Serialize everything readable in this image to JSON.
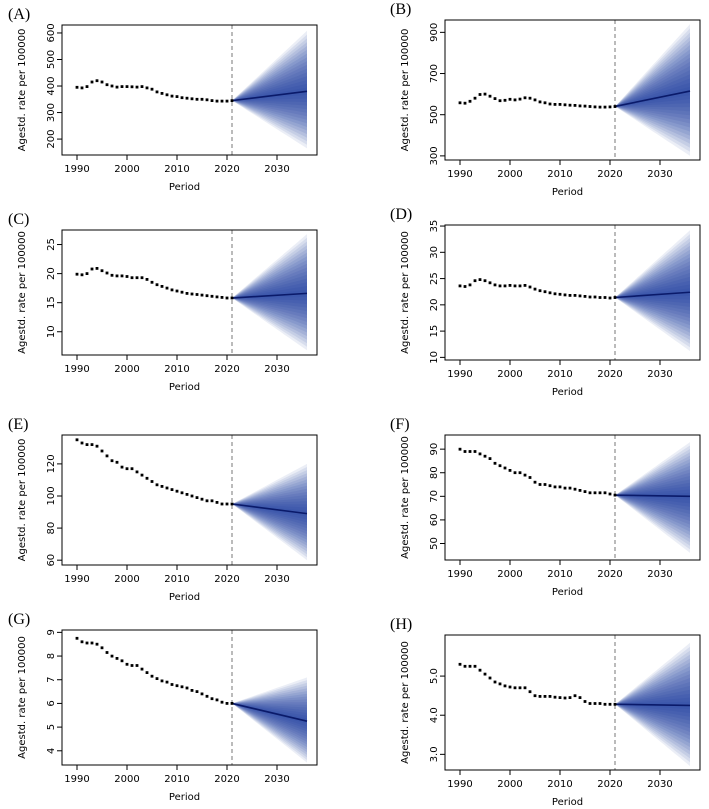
{
  "figure": {
    "colors": {
      "fan": "#1f3fa0",
      "obs": "#000000",
      "frame": "#000000",
      "vline": "#777777"
    }
  },
  "chart_data": [
    {
      "type": "line",
      "panel": "(A)",
      "xlabel": "Period",
      "ylabel": "Agestd. rate per 100000",
      "xlim": [
        1987,
        2038
      ],
      "ylim": [
        140,
        630
      ],
      "xticks": [
        1990,
        2000,
        2010,
        2020,
        2030
      ],
      "yticks": [
        200,
        300,
        400,
        500,
        600
      ],
      "forecast_start": 2021,
      "observed": {
        "x": [
          1990,
          1991,
          1992,
          1993,
          1994,
          1995,
          1996,
          1997,
          1998,
          1999,
          2000,
          2001,
          2002,
          2003,
          2004,
          2005,
          2006,
          2007,
          2008,
          2009,
          2010,
          2011,
          2012,
          2013,
          2014,
          2015,
          2016,
          2017,
          2018,
          2019,
          2020,
          2021
        ],
        "y": [
          395,
          393,
          398,
          415,
          420,
          415,
          405,
          400,
          396,
          398,
          398,
          397,
          396,
          398,
          393,
          388,
          378,
          372,
          367,
          362,
          360,
          356,
          354,
          352,
          350,
          350,
          348,
          345,
          343,
          343,
          343,
          345
        ]
      },
      "forecast": {
        "x": [
          2021,
          2036
        ],
        "median": [
          345,
          380
        ],
        "upper": [
          345,
          608
        ],
        "lower": [
          345,
          165
        ]
      }
    },
    {
      "type": "line",
      "panel": "(B)",
      "xlabel": "Period",
      "ylabel": "Agestd. rate per 100000",
      "xlim": [
        1987,
        2038
      ],
      "ylim": [
        280,
        960
      ],
      "xticks": [
        1990,
        2000,
        2010,
        2020,
        2030
      ],
      "yticks": [
        300,
        500,
        700,
        900
      ],
      "forecast_start": 2021,
      "observed": {
        "x": [
          1990,
          1991,
          1992,
          1993,
          1994,
          1995,
          1996,
          1997,
          1998,
          1999,
          2000,
          2001,
          2002,
          2003,
          2004,
          2005,
          2006,
          2007,
          2008,
          2009,
          2010,
          2011,
          2012,
          2013,
          2014,
          2015,
          2016,
          2017,
          2018,
          2019,
          2020,
          2021
        ],
        "y": [
          558,
          556,
          565,
          580,
          598,
          600,
          590,
          578,
          568,
          570,
          575,
          572,
          576,
          582,
          580,
          572,
          562,
          558,
          552,
          550,
          550,
          548,
          546,
          545,
          543,
          542,
          540,
          538,
          537,
          537,
          538,
          540
        ]
      },
      "forecast": {
        "x": [
          2021,
          2036
        ],
        "median": [
          540,
          615
        ],
        "upper": [
          540,
          940
        ],
        "lower": [
          540,
          300
        ]
      }
    },
    {
      "type": "line",
      "panel": "(C)",
      "xlabel": "Period",
      "ylabel": "Agestd. rate per 100000",
      "xlim": [
        1987,
        2038
      ],
      "ylim": [
        6,
        27.5
      ],
      "xticks": [
        1990,
        2000,
        2010,
        2020,
        2030
      ],
      "yticks": [
        10,
        15,
        20,
        25
      ],
      "forecast_start": 2021,
      "observed": {
        "x": [
          1990,
          1991,
          1992,
          1993,
          1994,
          1995,
          1996,
          1997,
          1998,
          1999,
          2000,
          2001,
          2002,
          2003,
          2004,
          2005,
          2006,
          2007,
          2008,
          2009,
          2010,
          2011,
          2012,
          2013,
          2014,
          2015,
          2016,
          2017,
          2018,
          2019,
          2020,
          2021
        ],
        "y": [
          19.9,
          19.8,
          20.0,
          20.8,
          20.9,
          20.5,
          20.1,
          19.7,
          19.6,
          19.6,
          19.5,
          19.3,
          19.3,
          19.3,
          19.0,
          18.5,
          18.1,
          17.8,
          17.5,
          17.2,
          17.0,
          16.8,
          16.6,
          16.5,
          16.4,
          16.3,
          16.2,
          16.1,
          16.0,
          15.9,
          15.8,
          15.8
        ]
      },
      "forecast": {
        "x": [
          2021,
          2036
        ],
        "median": [
          15.8,
          16.6
        ],
        "upper": [
          15.8,
          26.8
        ],
        "lower": [
          15.8,
          6.8
        ]
      }
    },
    {
      "type": "line",
      "panel": "(D)",
      "xlabel": "Period",
      "ylabel": "Agestd. rate per 100000",
      "xlim": [
        1987,
        2038
      ],
      "ylim": [
        9.5,
        35.2
      ],
      "xticks": [
        1990,
        2000,
        2010,
        2020,
        2030
      ],
      "yticks": [
        10,
        15,
        20,
        25,
        30,
        35
      ],
      "forecast_start": 2021,
      "observed": {
        "x": [
          1990,
          1991,
          1992,
          1993,
          1994,
          1995,
          1996,
          1997,
          1998,
          1999,
          2000,
          2001,
          2002,
          2003,
          2004,
          2005,
          2006,
          2007,
          2008,
          2009,
          2010,
          2011,
          2012,
          2013,
          2014,
          2015,
          2016,
          2017,
          2018,
          2019,
          2020,
          2021
        ],
        "y": [
          23.6,
          23.5,
          23.8,
          24.6,
          24.8,
          24.6,
          24.2,
          23.8,
          23.6,
          23.6,
          23.7,
          23.6,
          23.6,
          23.7,
          23.4,
          23.0,
          22.7,
          22.5,
          22.3,
          22.1,
          22.0,
          21.9,
          21.8,
          21.8,
          21.7,
          21.6,
          21.5,
          21.5,
          21.4,
          21.4,
          21.3,
          21.4
        ]
      },
      "forecast": {
        "x": [
          2021,
          2036
        ],
        "median": [
          21.4,
          22.4
        ],
        "upper": [
          21.4,
          34.2
        ],
        "lower": [
          21.4,
          11.2
        ]
      }
    },
    {
      "type": "line",
      "panel": "(E)",
      "xlabel": "Period",
      "ylabel": "Agestd. rate per 100000",
      "xlim": [
        1987,
        2038
      ],
      "ylim": [
        57,
        138
      ],
      "xticks": [
        1990,
        2000,
        2010,
        2020,
        2030
      ],
      "yticks": [
        60,
        80,
        100,
        120
      ],
      "forecast_start": 2021,
      "observed": {
        "x": [
          1990,
          1991,
          1992,
          1993,
          1994,
          1995,
          1996,
          1997,
          1998,
          1999,
          2000,
          2001,
          2002,
          2003,
          2004,
          2005,
          2006,
          2007,
          2008,
          2009,
          2010,
          2011,
          2012,
          2013,
          2014,
          2015,
          2016,
          2017,
          2018,
          2019,
          2020,
          2021
        ],
        "y": [
          135,
          133,
          132,
          132,
          131,
          128,
          125,
          122,
          121,
          118,
          117,
          117,
          115,
          113,
          111,
          109,
          107,
          106,
          105,
          104,
          103,
          102,
          101,
          100,
          99,
          98,
          97,
          97,
          96,
          95,
          95,
          95
        ]
      },
      "forecast": {
        "x": [
          2021,
          2036
        ],
        "median": [
          95,
          89
        ],
        "upper": [
          95,
          120
        ],
        "lower": [
          95,
          60
        ]
      }
    },
    {
      "type": "line",
      "panel": "(F)",
      "xlabel": "Period",
      "ylabel": "Agestd. rate per 100000",
      "xlim": [
        1987,
        2038
      ],
      "ylim": [
        43,
        96
      ],
      "xticks": [
        1990,
        2000,
        2010,
        2020,
        2030
      ],
      "yticks": [
        50,
        60,
        70,
        80,
        90
      ],
      "forecast_start": 2021,
      "observed": {
        "x": [
          1990,
          1991,
          1992,
          1993,
          1994,
          1995,
          1996,
          1997,
          1998,
          1999,
          2000,
          2001,
          2002,
          2003,
          2004,
          2005,
          2006,
          2007,
          2008,
          2009,
          2010,
          2011,
          2012,
          2013,
          2014,
          2015,
          2016,
          2017,
          2018,
          2019,
          2020,
          2021
        ],
        "y": [
          90,
          89,
          89,
          89,
          88,
          87,
          86,
          84,
          83,
          82,
          81,
          80,
          80,
          79,
          78,
          76,
          75,
          75,
          74.5,
          74,
          74,
          73.5,
          73.5,
          73,
          72.5,
          72,
          71.5,
          71.5,
          71.5,
          71.5,
          71,
          70.5
        ]
      },
      "forecast": {
        "x": [
          2021,
          2036
        ],
        "median": [
          70.5,
          70
        ],
        "upper": [
          70.5,
          93
        ],
        "lower": [
          70.5,
          46
        ]
      }
    },
    {
      "type": "line",
      "panel": "(G)",
      "xlabel": "Period",
      "ylabel": "Agestd. rate per 100000",
      "xlim": [
        1987,
        2038
      ],
      "ylim": [
        3.4,
        9.1
      ],
      "xticks": [
        1990,
        2000,
        2010,
        2020,
        2030
      ],
      "yticks": [
        4,
        5,
        6,
        7,
        8,
        9
      ],
      "forecast_start": 2021,
      "observed": {
        "x": [
          1990,
          1991,
          1992,
          1993,
          1994,
          1995,
          1996,
          1997,
          1998,
          1999,
          2000,
          2001,
          2002,
          2003,
          2004,
          2005,
          2006,
          2007,
          2008,
          2009,
          2010,
          2011,
          2012,
          2013,
          2014,
          2015,
          2016,
          2017,
          2018,
          2019,
          2020,
          2021
        ],
        "y": [
          8.75,
          8.6,
          8.55,
          8.55,
          8.5,
          8.35,
          8.15,
          8.0,
          7.9,
          7.8,
          7.65,
          7.6,
          7.6,
          7.45,
          7.3,
          7.15,
          7.05,
          6.95,
          6.9,
          6.8,
          6.75,
          6.7,
          6.65,
          6.55,
          6.5,
          6.4,
          6.3,
          6.2,
          6.15,
          6.05,
          6.0,
          6.0
        ]
      },
      "forecast": {
        "x": [
          2021,
          2036
        ],
        "median": [
          6.0,
          5.25
        ],
        "upper": [
          6.0,
          7.1
        ],
        "lower": [
          6.0,
          3.5
        ]
      }
    },
    {
      "type": "line",
      "panel": "(H)",
      "xlabel": "Period",
      "ylabel": "Agestd. rate per 100000",
      "xlim": [
        1987,
        2038
      ],
      "ylim": [
        2.6,
        6.05
      ],
      "xticks": [
        1990,
        2000,
        2010,
        2020,
        2030
      ],
      "yticks": [
        3.0,
        4.0,
        5.0
      ],
      "ytick_labels": [
        "3.0",
        "4.0",
        "5.0"
      ],
      "forecast_start": 2021,
      "observed": {
        "x": [
          1990,
          1991,
          1992,
          1993,
          1994,
          1995,
          1996,
          1997,
          1998,
          1999,
          2000,
          2001,
          2002,
          2003,
          2004,
          2005,
          2006,
          2007,
          2008,
          2009,
          2010,
          2011,
          2012,
          2013,
          2014,
          2015,
          2016,
          2017,
          2018,
          2019,
          2020,
          2021
        ],
        "y": [
          5.3,
          5.25,
          5.25,
          5.25,
          5.15,
          5.05,
          4.95,
          4.85,
          4.8,
          4.75,
          4.72,
          4.7,
          4.7,
          4.7,
          4.6,
          4.5,
          4.48,
          4.48,
          4.48,
          4.46,
          4.45,
          4.44,
          4.45,
          4.5,
          4.45,
          4.35,
          4.3,
          4.3,
          4.3,
          4.28,
          4.28,
          4.28
        ]
      },
      "forecast": {
        "x": [
          2021,
          2036
        ],
        "median": [
          4.28,
          4.25
        ],
        "upper": [
          4.28,
          5.85
        ],
        "lower": [
          4.28,
          2.7
        ]
      }
    }
  ]
}
